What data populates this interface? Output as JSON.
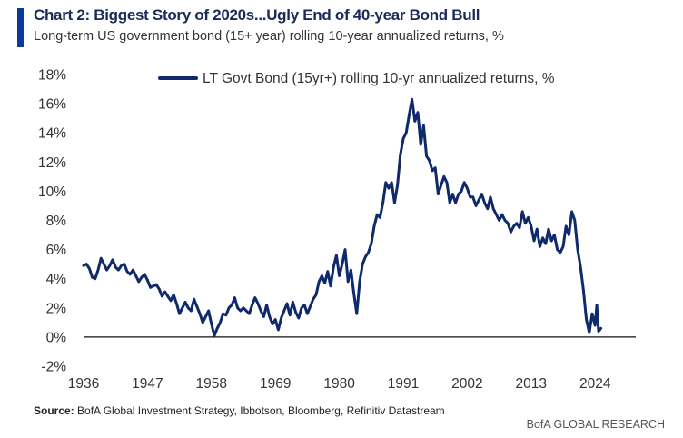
{
  "header": {
    "title": "Chart 2: Biggest Story of 2020s...Ugly End of 40-year Bond Bull",
    "subtitle": "Long-term US government bond (15+ year) rolling 10-year annualized returns, %"
  },
  "source": {
    "label": "Source:",
    "text": "BofA Global Investment Strategy, Ibbotson, Bloomberg, Refinitiv Datastream"
  },
  "footer": {
    "brand": "BofA GLOBAL RESEARCH"
  },
  "colors": {
    "accent": "#0a3a9a",
    "series": "#0f2a6b",
    "title": "#1a2a5a"
  },
  "chart_data": {
    "type": "line",
    "title": "",
    "xlabel": "",
    "ylabel": "",
    "xlim": [
      1936,
      2026
    ],
    "ylim": [
      -2,
      18
    ],
    "x_ticks": [
      1936,
      1947,
      1958,
      1969,
      1980,
      1991,
      2002,
      2013,
      2024
    ],
    "x_tick_labels": [
      "1936",
      "1947",
      "1958",
      "1969",
      "1980",
      "1991",
      "2002",
      "2013",
      "2024"
    ],
    "y_ticks": [
      -2,
      0,
      2,
      4,
      6,
      8,
      10,
      12,
      14,
      16,
      18
    ],
    "y_tick_labels": [
      "-2%",
      "0%",
      "2%",
      "4%",
      "6%",
      "8%",
      "10%",
      "12%",
      "14%",
      "16%",
      "18%"
    ],
    "grid": false,
    "zero_line": true,
    "legend_position": "top",
    "series": [
      {
        "name": "LT Govt Bond (15yr+) rolling 10-yr annualized returns, %",
        "color": "#0f2a6b",
        "points": [
          [
            1936.0,
            4.9
          ],
          [
            1936.5,
            5.0
          ],
          [
            1937.0,
            4.7
          ],
          [
            1937.5,
            4.1
          ],
          [
            1938.0,
            4.0
          ],
          [
            1938.5,
            4.6
          ],
          [
            1939.0,
            5.4
          ],
          [
            1939.5,
            5.0
          ],
          [
            1940.0,
            4.6
          ],
          [
            1940.5,
            4.9
          ],
          [
            1941.0,
            5.3
          ],
          [
            1941.5,
            4.8
          ],
          [
            1942.0,
            4.6
          ],
          [
            1942.5,
            4.9
          ],
          [
            1943.0,
            5.0
          ],
          [
            1943.5,
            4.5
          ],
          [
            1944.0,
            4.3
          ],
          [
            1944.5,
            4.6
          ],
          [
            1945.0,
            4.2
          ],
          [
            1945.5,
            3.8
          ],
          [
            1946.0,
            4.1
          ],
          [
            1946.5,
            4.3
          ],
          [
            1947.0,
            3.9
          ],
          [
            1947.5,
            3.4
          ],
          [
            1948.0,
            3.5
          ],
          [
            1948.5,
            3.6
          ],
          [
            1949.0,
            3.3
          ],
          [
            1949.5,
            2.8
          ],
          [
            1950.0,
            3.1
          ],
          [
            1950.5,
            2.8
          ],
          [
            1951.0,
            2.5
          ],
          [
            1951.5,
            2.9
          ],
          [
            1952.0,
            2.3
          ],
          [
            1952.5,
            1.6
          ],
          [
            1953.0,
            2.0
          ],
          [
            1953.5,
            2.4
          ],
          [
            1954.0,
            2.0
          ],
          [
            1954.5,
            1.8
          ],
          [
            1955.0,
            2.6
          ],
          [
            1955.5,
            2.1
          ],
          [
            1956.0,
            1.6
          ],
          [
            1956.5,
            1.0
          ],
          [
            1957.0,
            1.4
          ],
          [
            1957.5,
            1.8
          ],
          [
            1958.0,
            0.9
          ],
          [
            1958.5,
            0.1
          ],
          [
            1959.0,
            0.6
          ],
          [
            1959.5,
            1.0
          ],
          [
            1960.0,
            1.6
          ],
          [
            1960.5,
            1.5
          ],
          [
            1961.0,
            2.0
          ],
          [
            1961.5,
            2.2
          ],
          [
            1962.0,
            2.7
          ],
          [
            1962.5,
            2.0
          ],
          [
            1963.0,
            1.8
          ],
          [
            1963.5,
            2.0
          ],
          [
            1964.0,
            1.8
          ],
          [
            1964.5,
            1.6
          ],
          [
            1965.0,
            2.2
          ],
          [
            1965.5,
            2.7
          ],
          [
            1966.0,
            2.3
          ],
          [
            1966.5,
            1.8
          ],
          [
            1967.0,
            1.4
          ],
          [
            1967.5,
            2.2
          ],
          [
            1968.0,
            1.4
          ],
          [
            1968.5,
            0.9
          ],
          [
            1969.0,
            1.2
          ],
          [
            1969.5,
            0.5
          ],
          [
            1970.0,
            1.3
          ],
          [
            1970.5,
            1.8
          ],
          [
            1971.0,
            2.3
          ],
          [
            1971.5,
            1.5
          ],
          [
            1972.0,
            2.4
          ],
          [
            1972.5,
            1.7
          ],
          [
            1973.0,
            1.3
          ],
          [
            1973.5,
            2.0
          ],
          [
            1974.0,
            2.2
          ],
          [
            1974.5,
            1.6
          ],
          [
            1975.0,
            2.1
          ],
          [
            1975.5,
            2.6
          ],
          [
            1976.0,
            2.9
          ],
          [
            1976.5,
            3.8
          ],
          [
            1977.0,
            4.2
          ],
          [
            1977.5,
            3.7
          ],
          [
            1978.0,
            4.5
          ],
          [
            1978.5,
            3.5
          ],
          [
            1979.0,
            4.8
          ],
          [
            1979.5,
            5.6
          ],
          [
            1980.0,
            4.2
          ],
          [
            1980.5,
            5.0
          ],
          [
            1981.0,
            6.0
          ],
          [
            1981.5,
            3.8
          ],
          [
            1982.0,
            4.6
          ],
          [
            1982.5,
            3.0
          ],
          [
            1983.0,
            1.6
          ],
          [
            1983.5,
            3.8
          ],
          [
            1984.0,
            5.0
          ],
          [
            1984.5,
            5.5
          ],
          [
            1985.0,
            5.8
          ],
          [
            1985.5,
            6.4
          ],
          [
            1986.0,
            7.6
          ],
          [
            1986.5,
            8.4
          ],
          [
            1987.0,
            8.2
          ],
          [
            1987.5,
            9.2
          ],
          [
            1988.0,
            10.6
          ],
          [
            1988.5,
            10.2
          ],
          [
            1989.0,
            10.6
          ],
          [
            1989.5,
            9.2
          ],
          [
            1990.0,
            10.4
          ],
          [
            1990.5,
            12.5
          ],
          [
            1991.0,
            13.6
          ],
          [
            1991.5,
            14.0
          ],
          [
            1992.0,
            15.2
          ],
          [
            1992.5,
            16.3
          ],
          [
            1993.0,
            14.8
          ],
          [
            1993.5,
            15.4
          ],
          [
            1994.0,
            13.2
          ],
          [
            1994.5,
            14.5
          ],
          [
            1995.0,
            12.4
          ],
          [
            1995.5,
            12.1
          ],
          [
            1996.0,
            11.4
          ],
          [
            1996.5,
            11.6
          ],
          [
            1997.0,
            9.8
          ],
          [
            1997.5,
            10.4
          ],
          [
            1998.0,
            11.0
          ],
          [
            1998.5,
            10.6
          ],
          [
            1999.0,
            9.2
          ],
          [
            1999.5,
            9.8
          ],
          [
            2000.0,
            9.2
          ],
          [
            2000.5,
            9.8
          ],
          [
            2001.0,
            10.0
          ],
          [
            2001.5,
            10.6
          ],
          [
            2002.0,
            10.2
          ],
          [
            2002.5,
            9.6
          ],
          [
            2003.0,
            9.6
          ],
          [
            2003.5,
            9.0
          ],
          [
            2004.0,
            9.4
          ],
          [
            2004.5,
            9.8
          ],
          [
            2005.0,
            9.2
          ],
          [
            2005.5,
            8.8
          ],
          [
            2006.0,
            9.6
          ],
          [
            2006.5,
            8.8
          ],
          [
            2007.0,
            8.4
          ],
          [
            2007.5,
            8.0
          ],
          [
            2008.0,
            8.4
          ],
          [
            2008.5,
            8.0
          ],
          [
            2009.0,
            7.8
          ],
          [
            2009.5,
            7.2
          ],
          [
            2010.0,
            7.6
          ],
          [
            2010.5,
            7.8
          ],
          [
            2011.0,
            7.5
          ],
          [
            2011.5,
            8.6
          ],
          [
            2012.0,
            7.8
          ],
          [
            2012.5,
            8.2
          ],
          [
            2013.0,
            7.6
          ],
          [
            2013.5,
            6.6
          ],
          [
            2014.0,
            7.4
          ],
          [
            2014.5,
            6.2
          ],
          [
            2015.0,
            6.8
          ],
          [
            2015.5,
            6.4
          ],
          [
            2016.0,
            7.4
          ],
          [
            2016.5,
            6.6
          ],
          [
            2017.0,
            7.0
          ],
          [
            2017.5,
            6.0
          ],
          [
            2018.0,
            5.8
          ],
          [
            2018.5,
            6.2
          ],
          [
            2019.0,
            7.6
          ],
          [
            2019.5,
            7.0
          ],
          [
            2020.0,
            8.6
          ],
          [
            2020.5,
            8.0
          ],
          [
            2021.0,
            6.0
          ],
          [
            2021.5,
            4.8
          ],
          [
            2022.0,
            3.2
          ],
          [
            2022.5,
            1.2
          ],
          [
            2023.0,
            0.3
          ],
          [
            2023.5,
            1.6
          ],
          [
            2024.0,
            0.8
          ],
          [
            2024.3,
            2.2
          ],
          [
            2024.6,
            0.4
          ],
          [
            2025.0,
            0.6
          ]
        ]
      }
    ]
  }
}
